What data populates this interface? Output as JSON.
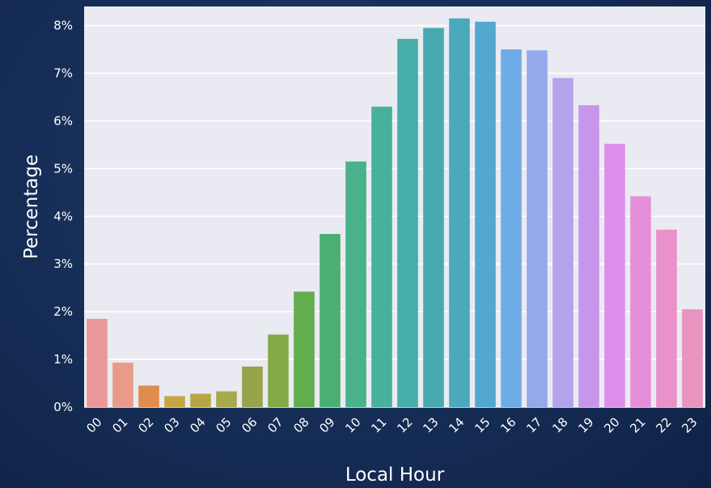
{
  "chart_data": {
    "type": "bar",
    "xlabel": "Local Hour",
    "ylabel": "Percentage",
    "ylim": [
      0,
      8.4
    ],
    "yticks": [
      0,
      1,
      2,
      3,
      4,
      5,
      6,
      7,
      8
    ],
    "ytick_labels": [
      "0%",
      "1%",
      "2%",
      "3%",
      "4%",
      "5%",
      "6%",
      "7%",
      "8%"
    ],
    "categories": [
      "00",
      "01",
      "02",
      "03",
      "04",
      "05",
      "06",
      "07",
      "08",
      "09",
      "10",
      "11",
      "12",
      "13",
      "14",
      "15",
      "16",
      "17",
      "18",
      "19",
      "20",
      "21",
      "22",
      "23"
    ],
    "values": [
      1.85,
      0.93,
      0.45,
      0.23,
      0.28,
      0.33,
      0.85,
      1.52,
      2.42,
      3.63,
      5.15,
      6.3,
      7.72,
      7.95,
      8.15,
      8.08,
      7.5,
      7.48,
      6.9,
      6.33,
      5.52,
      4.42,
      3.72,
      2.05
    ],
    "colors": [
      "#ea9799",
      "#ea9a88",
      "#e08c4f",
      "#c8a544",
      "#b8a646",
      "#a8a94b",
      "#97a44c",
      "#82aa47",
      "#62ad4e",
      "#4aaf72",
      "#49b28b",
      "#49b09b",
      "#47ada8",
      "#47aab1",
      "#4aa9bb",
      "#53a8cf",
      "#6dace5",
      "#94a8ea",
      "#b4a2ea",
      "#c796ea",
      "#dd8dea",
      "#e68fd9",
      "#e991c8",
      "#e993bf"
    ],
    "grid": true,
    "legend": "none",
    "plot_background": "#eaeaf2",
    "grid_color": "#ffffff"
  }
}
